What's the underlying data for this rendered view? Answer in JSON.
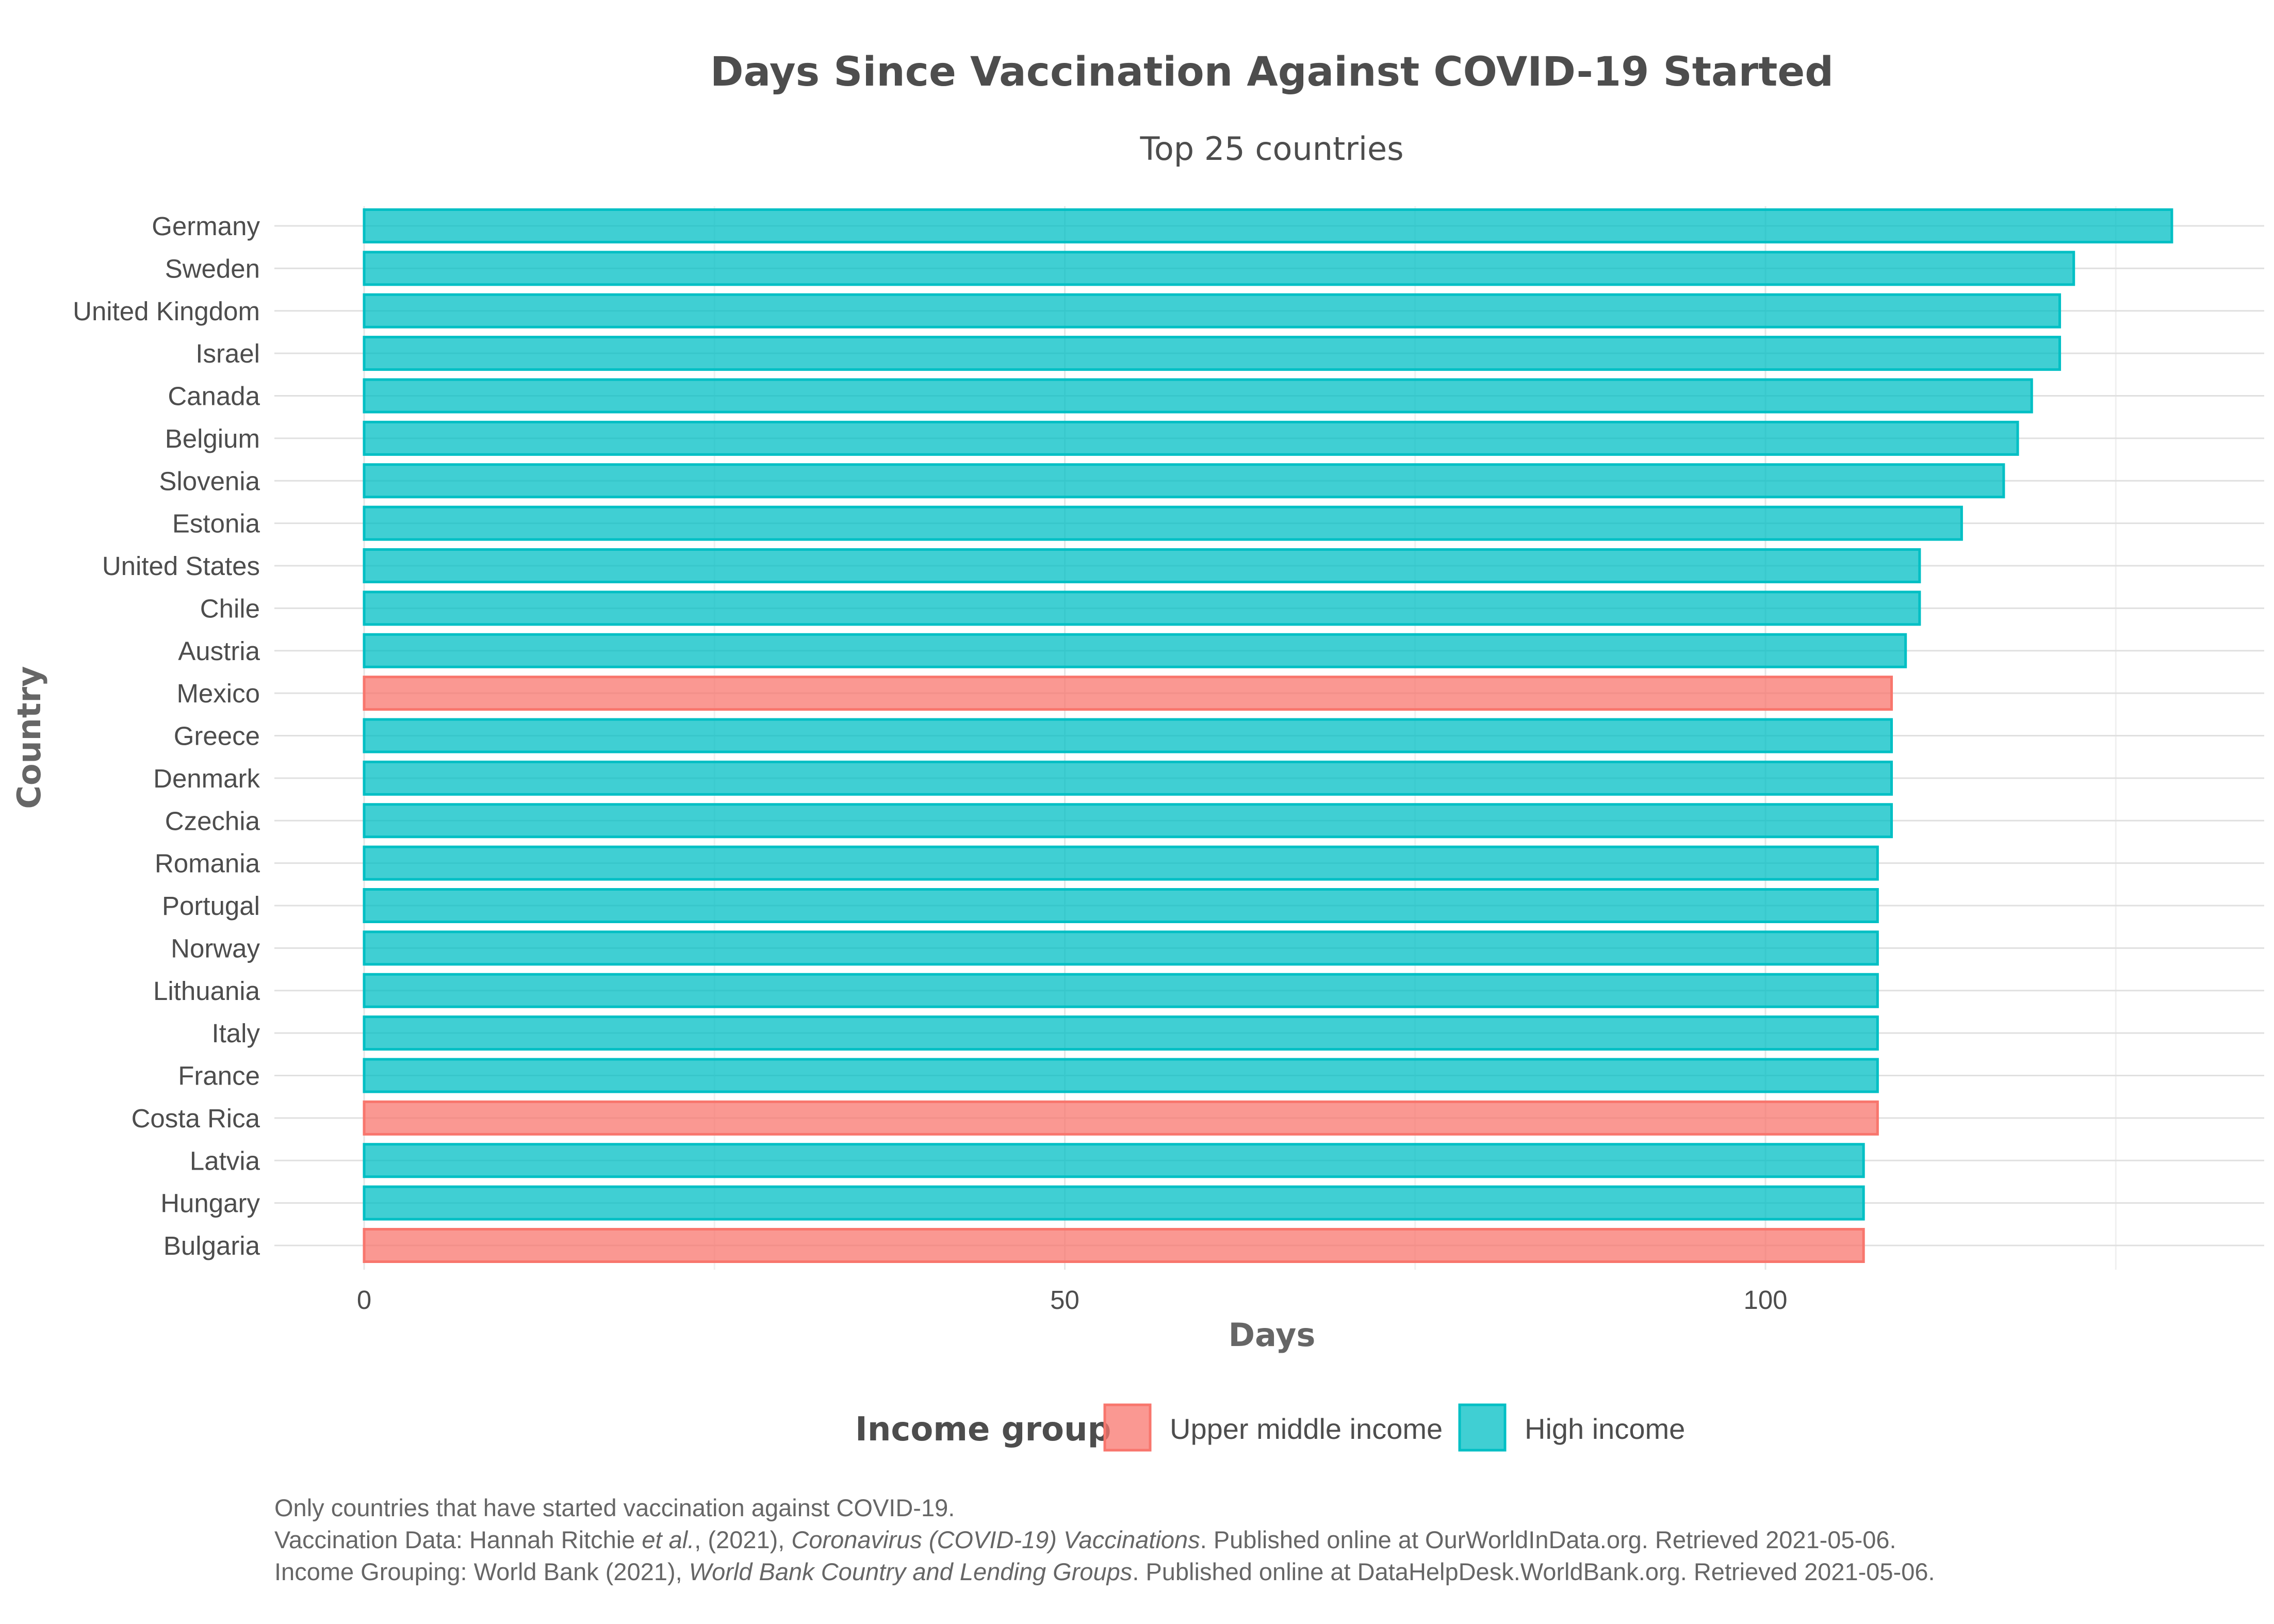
{
  "chart_data": {
    "type": "bar",
    "orientation": "horizontal",
    "title": "Days Since Vaccination Against COVID-19 Started",
    "subtitle": "Top 25 countries",
    "xlabel": "Days",
    "ylabel": "Country",
    "xlim": [
      0,
      135
    ],
    "x_ticks": [
      0,
      50,
      100
    ],
    "grid": true,
    "legend": {
      "title": "Income group",
      "position": "bottom",
      "items": [
        {
          "label": "Upper middle income",
          "color": "#F8766D"
        },
        {
          "label": "High income",
          "color": "#00BFC4"
        }
      ]
    },
    "categories": [
      "Germany",
      "Sweden",
      "United Kingdom",
      "Israel",
      "Canada",
      "Belgium",
      "Slovenia",
      "Estonia",
      "United States",
      "Chile",
      "Austria",
      "Mexico",
      "Greece",
      "Denmark",
      "Czechia",
      "Romania",
      "Portugal",
      "Norway",
      "Lithuania",
      "Italy",
      "France",
      "Costa Rica",
      "Latvia",
      "Hungary",
      "Bulgaria"
    ],
    "values": [
      129,
      122,
      121,
      121,
      119,
      118,
      117,
      114,
      111,
      111,
      110,
      109,
      109,
      109,
      109,
      108,
      108,
      108,
      108,
      108,
      108,
      108,
      107,
      107,
      107
    ],
    "groups": [
      "High income",
      "High income",
      "High income",
      "High income",
      "High income",
      "High income",
      "High income",
      "High income",
      "High income",
      "High income",
      "High income",
      "Upper middle income",
      "High income",
      "High income",
      "High income",
      "High income",
      "High income",
      "High income",
      "High income",
      "High income",
      "High income",
      "Upper middle income",
      "High income",
      "High income",
      "Upper middle income"
    ]
  },
  "caption": {
    "line1": "Only countries that have started vaccination against COVID-19.",
    "line2_a": "Vaccination Data: Hannah Ritchie ",
    "line2_b": "et al.",
    "line2_c": ", (2021), ",
    "line2_d": "Coronavirus (COVID-19) Vaccinations",
    "line2_e": ". Published online at OurWorldInData.org. Retrieved 2021-05-06.",
    "line3_a": "Income Grouping: World Bank (2021), ",
    "line3_b": "World Bank Country and Lending Groups",
    "line3_c": ". Published online at DataHelpDesk.WorldBank.org. Retrieved 2021-05-06."
  },
  "colors": {
    "Upper middle income": {
      "fill": "#F8766D",
      "stroke": "#F8766D"
    },
    "High income": {
      "fill": "#00BFC4",
      "stroke": "#00BFC4"
    }
  }
}
